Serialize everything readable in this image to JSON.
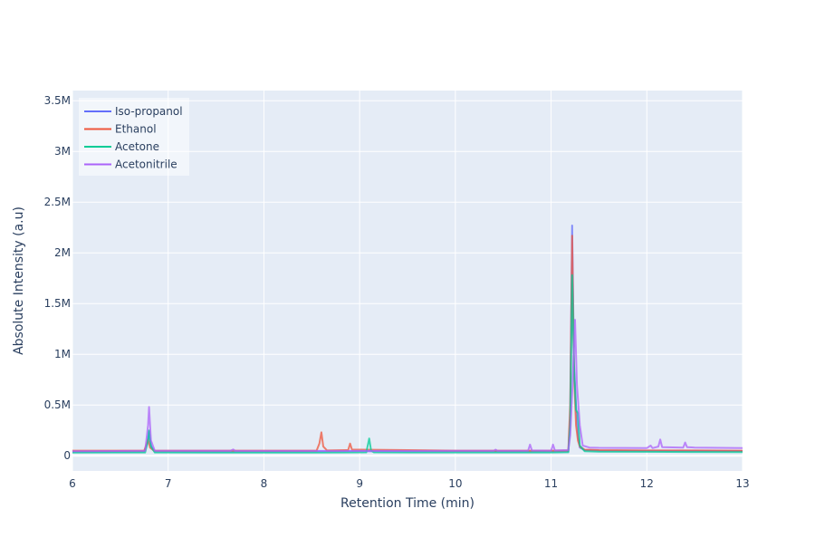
{
  "chart_data": {
    "type": "line",
    "title": "",
    "xlabel": "Retention Time (min)",
    "ylabel": "Absolute Intensity (a.u)",
    "xlim": [
      6,
      13
    ],
    "ylim": [
      -150000,
      3600000
    ],
    "grid": true,
    "legend_position": "top-left",
    "x_ticks": [
      6,
      7,
      8,
      9,
      10,
      11,
      12,
      13
    ],
    "x_tick_labels": [
      "6",
      "7",
      "8",
      "9",
      "10",
      "11",
      "12",
      "13"
    ],
    "y_ticks": [
      0,
      500000,
      1000000,
      1500000,
      2000000,
      2500000,
      3000000,
      3500000
    ],
    "y_tick_labels": [
      "0",
      "0.5M",
      "1M",
      "1.5M",
      "2M",
      "2.5M",
      "3M",
      "3.5M"
    ],
    "series": [
      {
        "name": "Iso-propanol",
        "color": "#636efa",
        "points": [
          [
            6.0,
            40000
          ],
          [
            6.75,
            42000
          ],
          [
            6.78,
            120000
          ],
          [
            6.8,
            240000
          ],
          [
            6.82,
            100000
          ],
          [
            6.86,
            42000
          ],
          [
            7.5,
            41000
          ],
          [
            8.5,
            42000
          ],
          [
            9.0,
            44000
          ],
          [
            9.5,
            42000
          ],
          [
            10.0,
            43000
          ],
          [
            10.5,
            42000
          ],
          [
            11.0,
            42000
          ],
          [
            11.18,
            44000
          ],
          [
            11.2,
            400000
          ],
          [
            11.22,
            2270000
          ],
          [
            11.24,
            900000
          ],
          [
            11.26,
            500000
          ],
          [
            11.28,
            200000
          ],
          [
            11.3,
            80000
          ],
          [
            11.35,
            55000
          ],
          [
            11.5,
            50000
          ],
          [
            12.0,
            48000
          ],
          [
            12.5,
            47000
          ],
          [
            13.0,
            46000
          ]
        ]
      },
      {
        "name": "Ethanol",
        "color": "#ef553b",
        "points": [
          [
            6.0,
            50000
          ],
          [
            6.75,
            50000
          ],
          [
            6.79,
            160000
          ],
          [
            6.81,
            80000
          ],
          [
            6.85,
            50000
          ],
          [
            7.5,
            50000
          ],
          [
            8.55,
            50000
          ],
          [
            8.58,
            120000
          ],
          [
            8.6,
            230000
          ],
          [
            8.62,
            90000
          ],
          [
            8.66,
            52000
          ],
          [
            8.88,
            56000
          ],
          [
            8.9,
            120000
          ],
          [
            8.92,
            60000
          ],
          [
            9.0,
            60000
          ],
          [
            9.5,
            55000
          ],
          [
            10.0,
            50000
          ],
          [
            10.5,
            50000
          ],
          [
            11.0,
            50000
          ],
          [
            11.18,
            52000
          ],
          [
            11.2,
            500000
          ],
          [
            11.22,
            2170000
          ],
          [
            11.24,
            800000
          ],
          [
            11.26,
            300000
          ],
          [
            11.28,
            150000
          ],
          [
            11.3,
            90000
          ],
          [
            11.35,
            60000
          ],
          [
            11.5,
            55000
          ],
          [
            12.0,
            52000
          ],
          [
            12.5,
            52000
          ],
          [
            13.0,
            50000
          ]
        ]
      },
      {
        "name": "Acetone",
        "color": "#00cc96",
        "points": [
          [
            6.0,
            30000
          ],
          [
            6.76,
            32000
          ],
          [
            6.79,
            150000
          ],
          [
            6.8,
            250000
          ],
          [
            6.82,
            90000
          ],
          [
            6.86,
            32000
          ],
          [
            7.5,
            31000
          ],
          [
            8.5,
            31000
          ],
          [
            9.07,
            33000
          ],
          [
            9.1,
            170000
          ],
          [
            9.12,
            50000
          ],
          [
            9.15,
            33000
          ],
          [
            9.5,
            32000
          ],
          [
            10.0,
            32000
          ],
          [
            10.5,
            32000
          ],
          [
            11.0,
            32000
          ],
          [
            11.18,
            34000
          ],
          [
            11.2,
            300000
          ],
          [
            11.22,
            1780000
          ],
          [
            11.24,
            850000
          ],
          [
            11.26,
            450000
          ],
          [
            11.28,
            420000
          ],
          [
            11.3,
            100000
          ],
          [
            11.35,
            45000
          ],
          [
            11.5,
            40000
          ],
          [
            12.0,
            38000
          ],
          [
            12.5,
            37000
          ],
          [
            13.0,
            36000
          ]
        ]
      },
      {
        "name": "Acetonitrile",
        "color": "#ab63fa",
        "points": [
          [
            6.0,
            45000
          ],
          [
            6.76,
            48000
          ],
          [
            6.79,
            300000
          ],
          [
            6.8,
            480000
          ],
          [
            6.82,
            150000
          ],
          [
            6.86,
            50000
          ],
          [
            7.5,
            48000
          ],
          [
            7.65,
            48000
          ],
          [
            7.68,
            62000
          ],
          [
            7.7,
            48000
          ],
          [
            8.5,
            47000
          ],
          [
            9.0,
            47000
          ],
          [
            9.5,
            47000
          ],
          [
            10.0,
            48000
          ],
          [
            10.4,
            48000
          ],
          [
            10.42,
            60000
          ],
          [
            10.44,
            48000
          ],
          [
            10.76,
            50000
          ],
          [
            10.78,
            110000
          ],
          [
            10.8,
            52000
          ],
          [
            11.0,
            50000
          ],
          [
            11.02,
            110000
          ],
          [
            11.04,
            52000
          ],
          [
            11.18,
            55000
          ],
          [
            11.2,
            200000
          ],
          [
            11.22,
            600000
          ],
          [
            11.25,
            1340000
          ],
          [
            11.27,
            700000
          ],
          [
            11.3,
            300000
          ],
          [
            11.33,
            100000
          ],
          [
            11.4,
            80000
          ],
          [
            11.5,
            78000
          ],
          [
            12.0,
            75000
          ],
          [
            12.04,
            100000
          ],
          [
            12.06,
            75000
          ],
          [
            12.12,
            90000
          ],
          [
            12.14,
            160000
          ],
          [
            12.16,
            85000
          ],
          [
            12.38,
            80000
          ],
          [
            12.4,
            130000
          ],
          [
            12.42,
            85000
          ],
          [
            12.5,
            80000
          ],
          [
            13.0,
            75000
          ]
        ]
      }
    ]
  }
}
